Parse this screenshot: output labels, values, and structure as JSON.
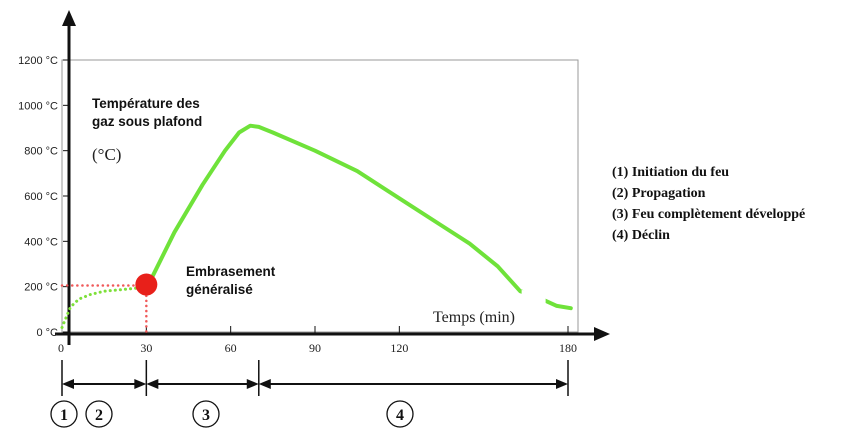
{
  "chart_data": {
    "type": "line",
    "ylabel_lines": [
      "Température des",
      "gaz sous plafond"
    ],
    "yunit": "(°C)",
    "xlabel": "Temps (min)",
    "y_ticks": [
      "0 °C",
      "200 °C",
      "400 °C",
      "600 °C",
      "800 °C",
      "1000 °C",
      "1200 °C"
    ],
    "x_ticks": [
      "0",
      "30",
      "60",
      "90",
      "120",
      "180"
    ],
    "xlim": [
      0,
      180
    ],
    "ylim": [
      0,
      1200
    ],
    "series": [
      {
        "style": "dotted",
        "color": "#7ee03a",
        "points": [
          [
            0,
            20
          ],
          [
            3,
            110
          ],
          [
            6,
            145
          ],
          [
            10,
            165
          ],
          [
            15,
            180
          ],
          [
            22,
            188
          ],
          [
            28,
            195
          ],
          [
            31,
            205
          ]
        ]
      },
      {
        "style": "solid",
        "color": "#6fe23a",
        "points": [
          [
            31,
            215
          ],
          [
            40,
            440
          ],
          [
            50,
            650
          ],
          [
            58,
            800
          ],
          [
            63,
            880
          ],
          [
            67,
            910
          ],
          [
            70,
            905
          ],
          [
            75,
            880
          ],
          [
            90,
            800
          ],
          [
            105,
            710
          ],
          [
            120,
            590
          ],
          [
            135,
            470
          ],
          [
            145,
            390
          ],
          [
            155,
            290
          ],
          [
            163,
            180
          ],
          [
            168,
            160
          ],
          [
            176,
            115
          ],
          [
            181,
            105
          ]
        ]
      }
    ],
    "flashover": {
      "x": 30,
      "y": 205,
      "color": "#e8201a",
      "label_lines": [
        "Embrasement",
        "généralisé"
      ]
    },
    "phases": [
      {
        "label": "1",
        "from": 0,
        "to": 30
      },
      {
        "label": "2",
        "from": 0,
        "to": 30
      },
      {
        "label": "3",
        "from": 30,
        "to": 70
      },
      {
        "label": "4",
        "from": 70,
        "to": 180
      }
    ],
    "legend": [
      "(1) Initiation du feu",
      "(2) Propagation",
      "(3) Feu complètement développé",
      "(4) Déclin"
    ]
  }
}
